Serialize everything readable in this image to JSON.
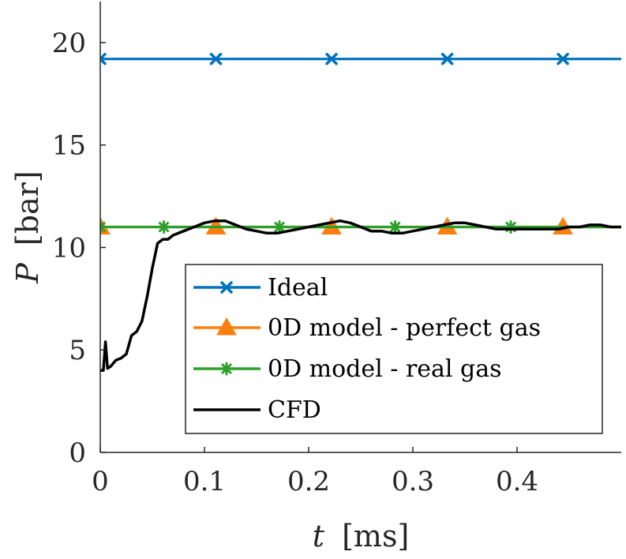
{
  "chart_data": {
    "type": "line",
    "xlabel": {
      "symbol": "t",
      "unit": "[ms]"
    },
    "ylabel": {
      "symbol": "P",
      "unit": "[bar]"
    },
    "xlim": [
      0,
      0.5
    ],
    "ylim": [
      0,
      22
    ],
    "xticks": [
      0,
      0.1,
      0.2,
      0.3,
      0.4
    ],
    "xtick_labels": [
      "0",
      "0.1",
      "0.2",
      "0.3",
      "0.4"
    ],
    "yticks": [
      0,
      5,
      10,
      15,
      20
    ],
    "ytick_labels": [
      "0",
      "5",
      "10",
      "15",
      "20"
    ],
    "grid": false,
    "legend_position": "bottom-right",
    "series": [
      {
        "name": "Ideal",
        "color": "#0072BD",
        "marker": "x",
        "x": [
          0,
          0.5
        ],
        "y": [
          19.2,
          19.2
        ],
        "marker_x": [
          0,
          0.111,
          0.222,
          0.333,
          0.444
        ]
      },
      {
        "name": "0D model - perfect gas",
        "color": "#FF7F0E",
        "marker": "triangle",
        "x": [
          0,
          0.5
        ],
        "y": [
          11.0,
          11.0
        ],
        "marker_x": [
          0,
          0.111,
          0.222,
          0.333,
          0.444
        ]
      },
      {
        "name": "0D model - real gas",
        "color": "#2CA02C",
        "marker": "asterisk",
        "x": [
          0,
          0.5
        ],
        "y": [
          11.0,
          11.0
        ],
        "marker_x": [
          0,
          0.061,
          0.172,
          0.283,
          0.394
        ]
      },
      {
        "name": "CFD",
        "color": "#000000",
        "marker": "none",
        "x": [
          0,
          0.003,
          0.005,
          0.007,
          0.01,
          0.015,
          0.02,
          0.025,
          0.03,
          0.035,
          0.04,
          0.045,
          0.05,
          0.055,
          0.06,
          0.065,
          0.07,
          0.08,
          0.09,
          0.1,
          0.11,
          0.12,
          0.13,
          0.14,
          0.15,
          0.16,
          0.17,
          0.18,
          0.19,
          0.2,
          0.21,
          0.22,
          0.23,
          0.24,
          0.25,
          0.26,
          0.27,
          0.28,
          0.29,
          0.3,
          0.31,
          0.32,
          0.33,
          0.34,
          0.35,
          0.36,
          0.37,
          0.38,
          0.39,
          0.4,
          0.41,
          0.42,
          0.43,
          0.44,
          0.45,
          0.46,
          0.47,
          0.48,
          0.49,
          0.5
        ],
        "y": [
          4.0,
          4.0,
          5.4,
          4.1,
          4.2,
          4.5,
          4.6,
          4.8,
          5.7,
          5.9,
          6.4,
          7.6,
          9.0,
          10.2,
          10.4,
          10.4,
          10.6,
          10.8,
          11.0,
          11.2,
          11.3,
          11.3,
          11.1,
          10.9,
          10.8,
          10.7,
          10.7,
          10.8,
          10.9,
          11.0,
          11.1,
          11.2,
          11.3,
          11.2,
          11.0,
          10.8,
          10.8,
          10.7,
          10.7,
          10.8,
          10.9,
          11.0,
          11.1,
          11.2,
          11.2,
          11.1,
          11.0,
          10.9,
          10.9,
          10.9,
          10.9,
          10.9,
          10.9,
          10.9,
          11.0,
          11.0,
          11.1,
          11.1,
          11.0,
          11.0
        ]
      }
    ]
  }
}
